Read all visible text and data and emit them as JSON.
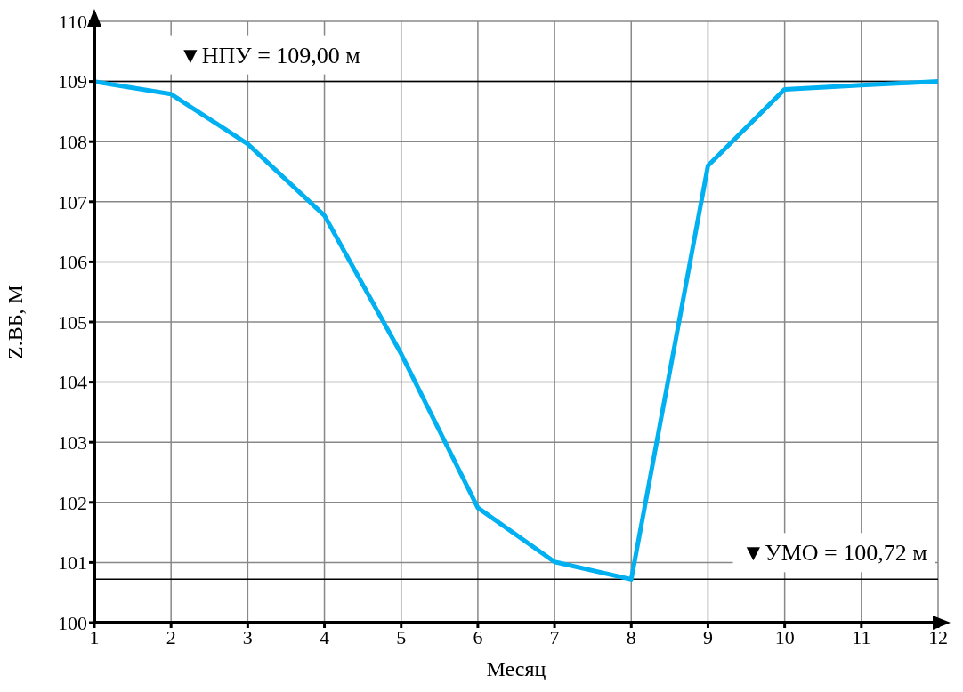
{
  "chart_data": {
    "type": "line",
    "xlabel": "Месяц",
    "ylabel": "Z.ВБ, М",
    "x": [
      1,
      2,
      3,
      4,
      5,
      6,
      7,
      8,
      9,
      10,
      11,
      12
    ],
    "series": [
      {
        "color": "#00b0f0",
        "values": [
          109.0,
          108.79,
          107.96,
          106.77,
          104.47,
          101.91,
          101.01,
          100.72,
          107.6,
          108.87,
          108.94,
          109.0
        ]
      }
    ],
    "xlim": [
      1,
      12
    ],
    "xticks": [
      1,
      2,
      3,
      4,
      5,
      6,
      7,
      8,
      9,
      10,
      11,
      12
    ],
    "ylim": [
      100,
      110
    ],
    "yticks": [
      100,
      101,
      102,
      103,
      104,
      105,
      106,
      107,
      108,
      109,
      110
    ],
    "ref_lines": [
      {
        "axis": "y",
        "value": 109.0,
        "label": "▼НПУ = 109,00 м",
        "color": "#000000"
      },
      {
        "axis": "y",
        "value": 100.72,
        "label": "▼УМО = 100,72 м",
        "color": "#000000"
      }
    ],
    "grid": true,
    "marker": "none",
    "line_style": "solid"
  }
}
